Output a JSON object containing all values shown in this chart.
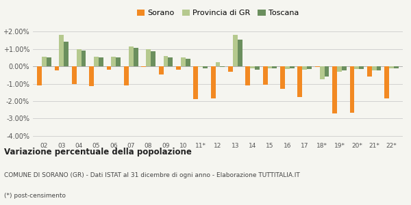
{
  "years": [
    "02",
    "03",
    "04",
    "05",
    "06",
    "07",
    "08",
    "09",
    "10",
    "11*",
    "12",
    "13",
    "14",
    "15",
    "16",
    "17",
    "18*",
    "19*",
    "20*",
    "21*",
    "22*"
  ],
  "sorano": [
    -1.1,
    -0.25,
    -1.0,
    -1.15,
    -0.2,
    -1.1,
    -0.05,
    -0.45,
    -0.2,
    -1.9,
    -1.85,
    -0.3,
    -1.1,
    -1.05,
    -1.3,
    -1.75,
    -0.05,
    -2.7,
    -2.65,
    -0.6,
    -1.85
  ],
  "provincia": [
    0.55,
    1.8,
    1.0,
    0.55,
    0.55,
    1.15,
    1.0,
    0.6,
    0.5,
    -0.05,
    0.25,
    1.8,
    -0.1,
    -0.1,
    -0.15,
    -0.2,
    -0.75,
    -0.3,
    -0.15,
    -0.25,
    -0.1
  ],
  "toscana": [
    0.5,
    1.4,
    0.9,
    0.5,
    0.5,
    1.05,
    0.85,
    0.5,
    0.45,
    -0.1,
    -0.05,
    1.55,
    -0.2,
    -0.1,
    -0.1,
    -0.15,
    -0.6,
    -0.25,
    -0.15,
    -0.25,
    -0.1
  ],
  "color_sorano": "#f28922",
  "color_provincia": "#b5c98e",
  "color_toscana": "#6b8f5e",
  "title": "Variazione percentuale della popolazione",
  "subtitle1": "COMUNE DI SORANO (GR) - Dati ISTAT al 31 dicembre di ogni anno - Elaborazione TUTTITALIA.IT",
  "subtitle2": "(*) post-censimento",
  "bg_color": "#f5f5f0",
  "ylim": [
    -4.2,
    2.4
  ],
  "yticks": [
    -4.0,
    -3.0,
    -2.0,
    -1.0,
    0.0,
    1.0,
    2.0
  ],
  "bar_width": 0.27
}
